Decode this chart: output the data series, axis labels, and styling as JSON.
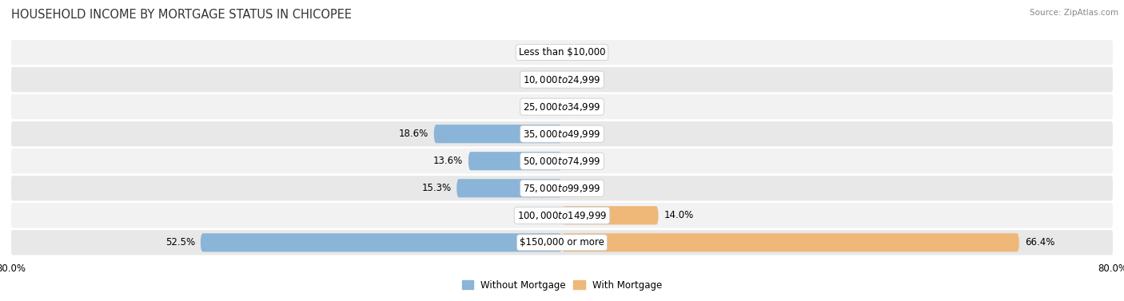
{
  "title": "HOUSEHOLD INCOME BY MORTGAGE STATUS IN CHICOPEE",
  "source": "Source: ZipAtlas.com",
  "categories": [
    "Less than $10,000",
    "$10,000 to $24,999",
    "$25,000 to $34,999",
    "$35,000 to $49,999",
    "$50,000 to $74,999",
    "$75,000 to $99,999",
    "$100,000 to $149,999",
    "$150,000 or more"
  ],
  "without_mortgage": [
    0.0,
    0.0,
    0.0,
    18.6,
    13.6,
    15.3,
    0.0,
    52.5
  ],
  "with_mortgage": [
    0.0,
    0.0,
    0.0,
    0.0,
    0.0,
    0.0,
    14.0,
    66.4
  ],
  "color_without": "#8ab4d8",
  "color_with": "#f0b878",
  "axis_max": 80.0,
  "legend_labels": [
    "Without Mortgage",
    "With Mortgage"
  ],
  "title_fontsize": 10.5,
  "label_fontsize": 8.5,
  "bar_height": 0.68,
  "row_colors": [
    "#efefef",
    "#e6e6e6",
    "#efefef",
    "#e6e6e6",
    "#efefef",
    "#e6e6e6",
    "#efefef",
    "#e6e6e6"
  ]
}
